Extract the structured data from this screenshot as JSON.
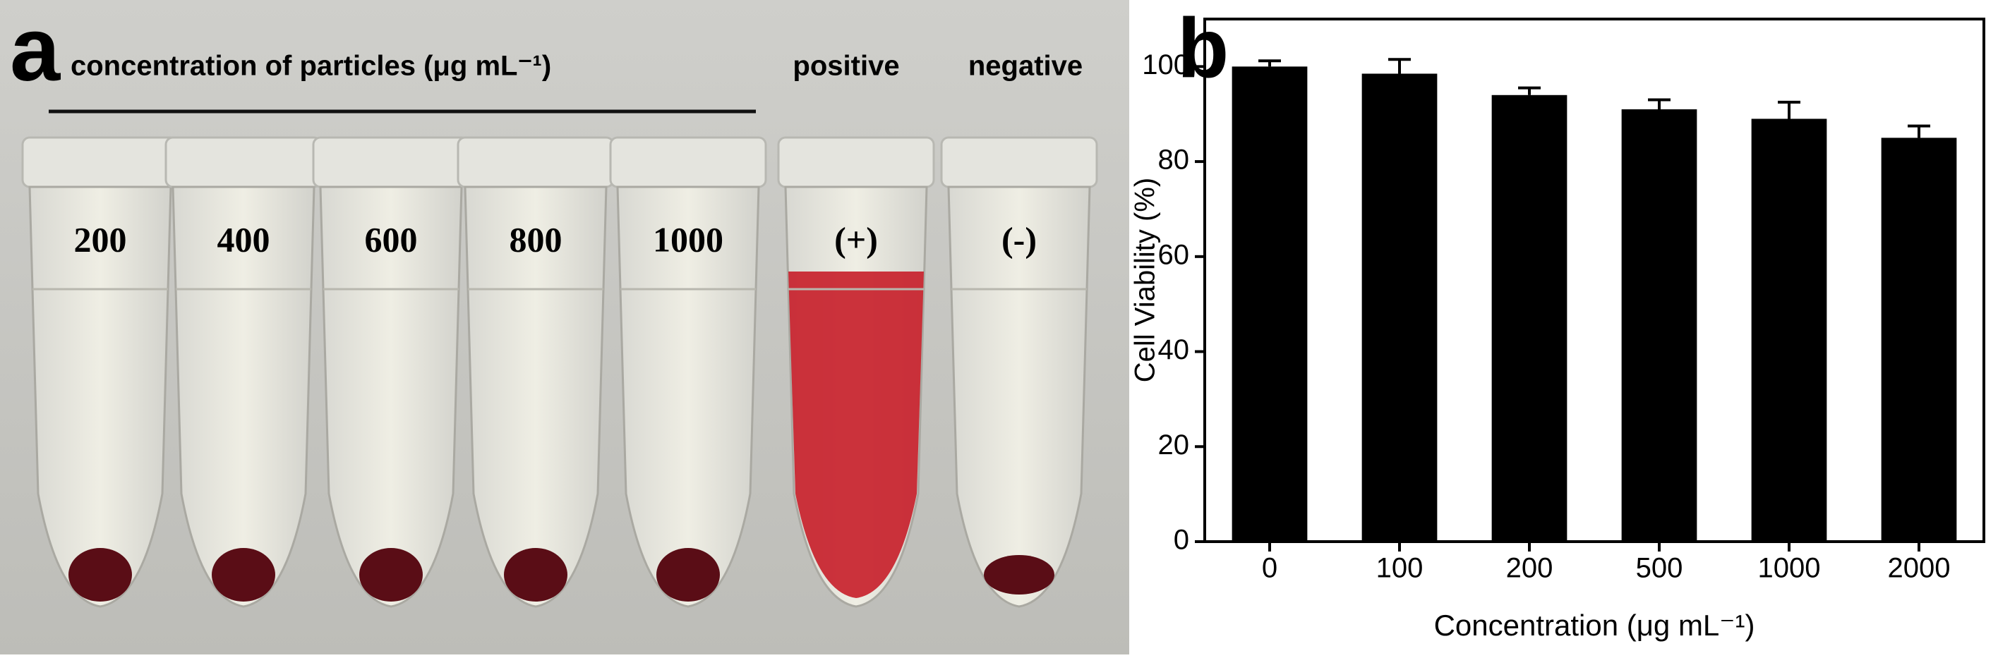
{
  "panel_a": {
    "letter": "a",
    "heading": "concentration of particles (μg mL⁻¹)",
    "positive": "positive",
    "negative": "negative",
    "tubes": [
      "200",
      "400",
      "600",
      "800",
      "1000",
      "(+)",
      "(-)"
    ]
  },
  "chart_data": {
    "type": "bar",
    "letter": "b",
    "x_label": "Concentration (μg mL⁻¹)",
    "y_label": "Cell Viability (%)",
    "categories": [
      "0",
      "100",
      "200",
      "500",
      "1000",
      "2000"
    ],
    "values": [
      100,
      98.5,
      94,
      91,
      89,
      85
    ],
    "error_values": [
      1.2,
      3,
      1.5,
      2,
      3.5,
      2.5
    ],
    "color": "#000000",
    "ylim": [
      0,
      110
    ],
    "yticks": [
      0,
      20,
      40,
      60,
      80,
      100
    ]
  }
}
